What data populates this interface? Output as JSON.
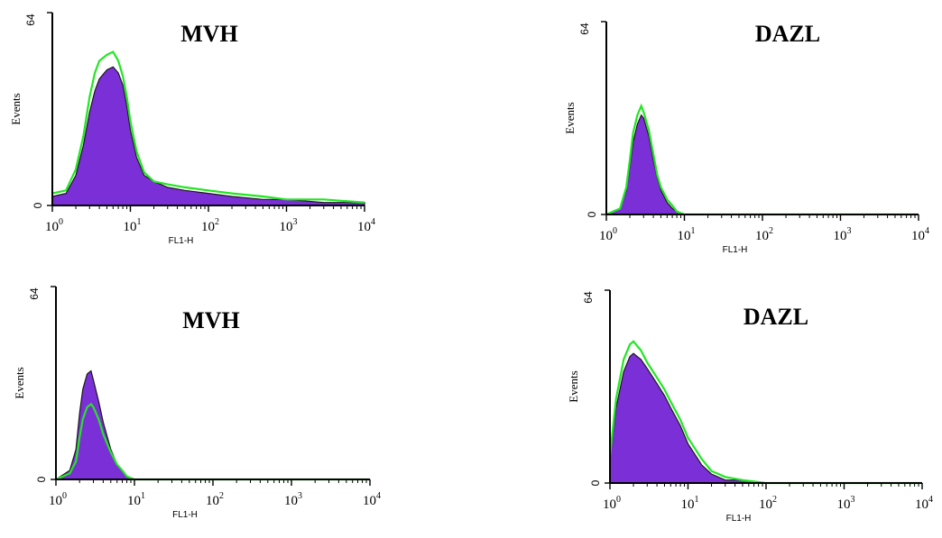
{
  "chart_data": [
    {
      "type": "area",
      "title": "MVH",
      "xlabel": "FL1-H",
      "ylabel": "Events",
      "x_scale": "log",
      "xlim": [
        1,
        10000
      ],
      "ylim": [
        0,
        64
      ],
      "x_ticks": [
        "10",
        "10",
        "10",
        "10",
        "10"
      ],
      "x_tick_exponents": [
        "0",
        "1",
        "2",
        "3",
        "4"
      ],
      "y_ticks": [
        "0",
        "64"
      ],
      "series": [
        {
          "color": "#7b2fd6",
          "style": "filled-purple",
          "x": [
            1,
            1.5,
            2,
            2.5,
            3,
            3.5,
            4,
            5,
            6,
            7,
            8,
            9,
            10,
            12,
            15,
            20,
            30,
            50,
            100,
            200,
            500,
            1000,
            3000,
            10000
          ],
          "y": [
            3,
            4,
            10,
            20,
            31,
            38,
            42,
            45,
            46,
            44,
            40,
            33,
            25,
            16,
            10,
            8,
            6,
            5,
            4,
            3,
            2,
            2,
            1,
            1
          ]
        },
        {
          "color": "#22e622",
          "style": "line-green",
          "x": [
            1,
            1.5,
            2,
            2.5,
            3,
            3.5,
            4,
            5,
            6,
            7,
            8,
            9,
            10,
            12,
            15,
            20,
            30,
            50,
            100,
            200,
            500,
            1000,
            3000,
            10000
          ],
          "y": [
            4,
            5,
            12,
            23,
            36,
            44,
            48,
            50,
            51,
            48,
            43,
            36,
            28,
            18,
            11,
            8,
            7,
            6,
            5,
            4,
            3,
            2,
            2,
            1
          ]
        }
      ]
    },
    {
      "type": "area",
      "title": "DAZL",
      "xlabel": "FL1-H",
      "ylabel": "Events",
      "x_scale": "log",
      "xlim": [
        1,
        10000
      ],
      "ylim": [
        0,
        64
      ],
      "x_ticks": [
        "10",
        "10",
        "10",
        "10",
        "10"
      ],
      "x_tick_exponents": [
        "0",
        "1",
        "2",
        "3",
        "4"
      ],
      "y_ticks": [
        "0",
        "64"
      ],
      "series": [
        {
          "color": "#7b2fd6",
          "style": "filled-purple",
          "x": [
            1,
            1.5,
            1.8,
            2,
            2.2,
            2.5,
            2.8,
            3,
            3.5,
            4,
            4.5,
            5,
            6,
            7,
            8,
            10,
            20,
            100,
            10000
          ],
          "y": [
            0,
            2,
            8,
            16,
            24,
            30,
            33,
            32,
            26,
            18,
            12,
            8,
            4,
            2,
            1,
            0,
            0,
            0,
            0
          ]
        },
        {
          "color": "#22e622",
          "style": "line-green",
          "x": [
            1,
            1.5,
            1.8,
            2,
            2.2,
            2.5,
            2.8,
            3,
            3.5,
            4,
            4.5,
            5,
            6,
            7,
            8,
            10,
            20,
            100,
            10000
          ],
          "y": [
            0,
            2,
            9,
            18,
            27,
            33,
            36,
            34,
            28,
            20,
            13,
            9,
            5,
            3,
            1,
            0,
            0,
            0,
            0
          ]
        }
      ]
    },
    {
      "type": "area",
      "title": "MVH",
      "xlabel": "FL1-H",
      "ylabel": "Events",
      "x_scale": "log",
      "xlim": [
        1,
        10000
      ],
      "ylim": [
        0,
        64
      ],
      "x_ticks": [
        "10",
        "10",
        "10",
        "10",
        "10"
      ],
      "x_tick_exponents": [
        "0",
        "1",
        "2",
        "3",
        "4"
      ],
      "y_ticks": [
        "0",
        "64"
      ],
      "series": [
        {
          "color": "#7b2fd6",
          "style": "filled-purple",
          "x": [
            1,
            1.5,
            1.8,
            2,
            2.2,
            2.5,
            2.8,
            3,
            3.5,
            4,
            5,
            6,
            7,
            8,
            10,
            20,
            100,
            10000
          ],
          "y": [
            0,
            3,
            10,
            22,
            30,
            35,
            36,
            33,
            26,
            19,
            10,
            5,
            3,
            1,
            0,
            0,
            0,
            0
          ]
        },
        {
          "color": "#22e622",
          "style": "line-green",
          "x": [
            1,
            1.5,
            1.8,
            2,
            2.2,
            2.5,
            2.8,
            3,
            3.5,
            4,
            5,
            6,
            7,
            8,
            10,
            20,
            100,
            10000
          ],
          "y": [
            0,
            2,
            6,
            14,
            20,
            24,
            25,
            24,
            20,
            15,
            9,
            5,
            3,
            1,
            0,
            0,
            0,
            0
          ]
        }
      ]
    },
    {
      "type": "area",
      "title": "DAZL",
      "xlabel": "FL1-H",
      "ylabel": "Events",
      "x_scale": "log",
      "xlim": [
        1,
        10000
      ],
      "ylim": [
        0,
        64
      ],
      "x_ticks": [
        "10",
        "10",
        "10",
        "10",
        "10"
      ],
      "x_tick_exponents": [
        "0",
        "1",
        "2",
        "3",
        "4"
      ],
      "y_ticks": [
        "0",
        "64"
      ],
      "series": [
        {
          "color": "#7b2fd6",
          "style": "filled-purple",
          "x": [
            1,
            1.2,
            1.5,
            1.8,
            2,
            2.5,
            3,
            4,
            5,
            6,
            8,
            10,
            15,
            20,
            30,
            50,
            100,
            1000,
            10000
          ],
          "y": [
            8,
            25,
            37,
            42,
            43,
            41,
            38,
            33,
            29,
            25,
            19,
            13,
            6,
            3,
            1,
            1,
            0,
            0,
            0
          ]
        },
        {
          "color": "#22e622",
          "style": "line-green",
          "x": [
            1,
            1.2,
            1.5,
            1.8,
            2,
            2.5,
            3,
            4,
            5,
            6,
            8,
            10,
            15,
            20,
            30,
            50,
            100,
            1000,
            10000
          ],
          "y": [
            9,
            28,
            41,
            46,
            47,
            44,
            40,
            35,
            31,
            27,
            21,
            15,
            8,
            4,
            2,
            1,
            0,
            0,
            0
          ]
        }
      ]
    }
  ]
}
